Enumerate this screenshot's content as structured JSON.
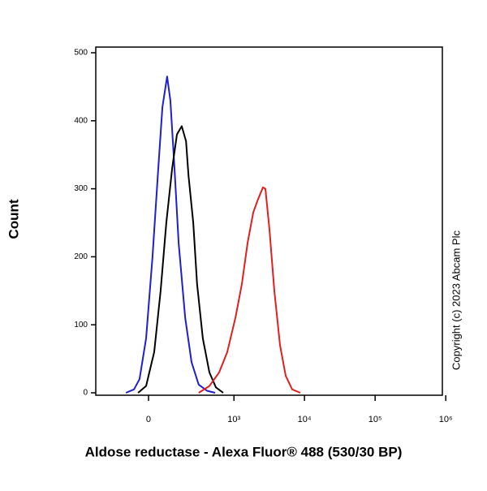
{
  "chart_data": {
    "type": "line",
    "xlabel": "Aldose reductase - Alexa Fluor® 488 (530/30 BP)",
    "ylabel": "Count",
    "annotation": "Copyright (c) 2023 Abcam Plc",
    "xscale": "biexponential",
    "xlim": [
      -335,
      895000
    ],
    "xticks": [
      0,
      {
        "value": 1000,
        "label": "10³"
      },
      {
        "value": 10000,
        "label": "10⁴"
      },
      {
        "value": 100000,
        "label": "10⁵"
      },
      {
        "value": 1000000,
        "label": "10⁶"
      }
    ],
    "ylim": [
      0,
      500
    ],
    "yticks": [
      0,
      100,
      200,
      300,
      400,
      500
    ],
    "series": [
      {
        "color": "#1f1fd0",
        "x": [
          -100,
          -61,
          -37,
          -10,
          16,
          40,
          58,
          80,
          96,
          118,
          142,
          186,
          237,
          306,
          408,
          536
        ],
        "values": [
          0,
          5,
          20,
          80,
          200,
          330,
          420,
          465,
          430,
          330,
          220,
          110,
          45,
          12,
          3,
          0
        ]
      },
      {
        "color": "#000000",
        "x": [
          -43,
          -10,
          23,
          50,
          76,
          105,
          132,
          162,
          192,
          211,
          252,
          289,
          353,
          443,
          551,
          702
        ],
        "values": [
          0,
          10,
          60,
          150,
          250,
          330,
          380,
          392,
          370,
          320,
          250,
          160,
          80,
          30,
          8,
          0
        ]
      },
      {
        "color": "#e02020",
        "x": [
          306,
          443,
          614,
          802,
          1049,
          1296,
          1562,
          1881,
          2205,
          2585,
          2799,
          3197,
          3746,
          4501,
          5419,
          6696,
          8730
        ],
        "values": [
          0,
          10,
          30,
          60,
          110,
          160,
          220,
          265,
          285,
          302,
          300,
          240,
          150,
          70,
          25,
          5,
          0
        ]
      }
    ]
  }
}
